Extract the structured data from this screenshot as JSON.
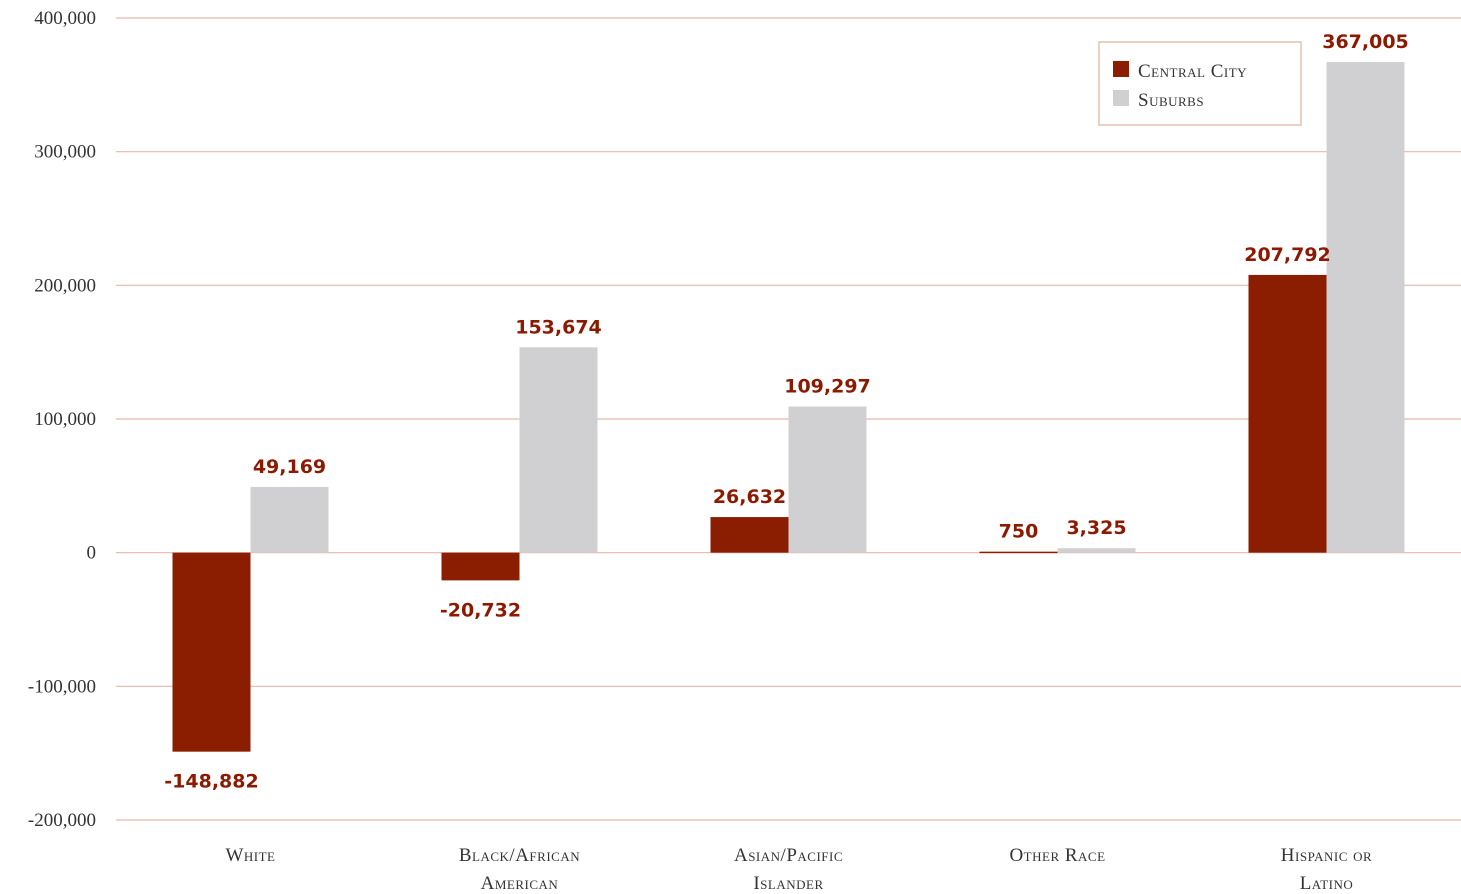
{
  "colors": {
    "central_city": "#8b1e00",
    "suburbs": "#d0d0d2",
    "gridline": "#e5b8aa",
    "label": "#8b1a00"
  },
  "chart_data": {
    "type": "bar",
    "title": "",
    "xlabel": "",
    "ylabel": "",
    "ylim": [
      -200000,
      400000
    ],
    "yticks": [
      400000,
      300000,
      200000,
      100000,
      0,
      -100000,
      -200000
    ],
    "ytick_labels": [
      "400,000",
      "300,000",
      "200,000",
      "100,000",
      "0",
      "-100,000",
      "-200,000"
    ],
    "categories": [
      [
        "White"
      ],
      [
        "Black/African",
        "American"
      ],
      [
        "Asian/Pacific",
        "Islander"
      ],
      [
        "Other Race"
      ],
      [
        "Hispanic or",
        "Latino"
      ]
    ],
    "series": [
      {
        "name": "Central City",
        "values": [
          -148882,
          -20732,
          26632,
          750,
          207792
        ],
        "labels": [
          "-148,882",
          "-20,732",
          "26,632",
          "750",
          "207,792"
        ]
      },
      {
        "name": "Suburbs",
        "values": [
          49169,
          153674,
          109297,
          3325,
          367005
        ],
        "labels": [
          "49,169",
          "153,674",
          "109,297",
          "3,325",
          "367,005"
        ]
      }
    ],
    "grid": true,
    "legend_position": "top-right"
  }
}
